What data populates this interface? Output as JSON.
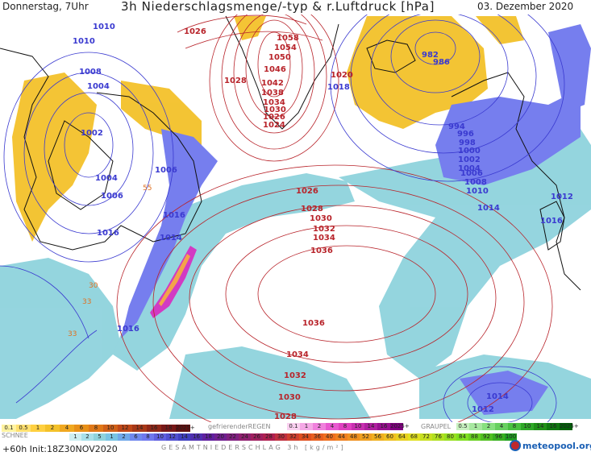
{
  "header": {
    "day_time": "Donnerstag, 7Uhr",
    "title": "3h Niederschlagsmenge/-typ & r.Luftdruck [hPa]",
    "date": "03. Dezember 2020"
  },
  "colors": {
    "high_isobar": "#b8232a",
    "low_isobar": "#3a3ad0",
    "snow": "#f3c12a",
    "rain": "#8fd3dd",
    "heavy_rain": "#5c68e6",
    "freezing": "#e040c0"
  },
  "pressure_labels": [
    {
      "text": "1010",
      "kind": "low"
    },
    {
      "text": "1010",
      "kind": "low"
    },
    {
      "text": "1008",
      "kind": "low"
    },
    {
      "text": "1004",
      "kind": "low"
    },
    {
      "text": "1002",
      "kind": "low"
    },
    {
      "text": "1004",
      "kind": "low"
    },
    {
      "text": "1006",
      "kind": "low"
    },
    {
      "text": "1006",
      "kind": "low"
    },
    {
      "text": "1016",
      "kind": "low"
    },
    {
      "text": "1016",
      "kind": "low"
    },
    {
      "text": "1014",
      "kind": "low"
    },
    {
      "text": "1016",
      "kind": "low"
    },
    {
      "text": "1026",
      "kind": "high"
    },
    {
      "text": "1028",
      "kind": "high"
    },
    {
      "text": "1058",
      "kind": "high"
    },
    {
      "text": "1054",
      "kind": "high"
    },
    {
      "text": "1050",
      "kind": "high"
    },
    {
      "text": "1046",
      "kind": "high"
    },
    {
      "text": "1042",
      "kind": "high"
    },
    {
      "text": "1038",
      "kind": "high"
    },
    {
      "text": "1034",
      "kind": "high"
    },
    {
      "text": "1030",
      "kind": "high"
    },
    {
      "text": "1026",
      "kind": "high"
    },
    {
      "text": "1024",
      "kind": "high"
    },
    {
      "text": "1020",
      "kind": "high"
    },
    {
      "text": "1018",
      "kind": "low"
    },
    {
      "text": "982",
      "kind": "low"
    },
    {
      "text": "986",
      "kind": "low"
    },
    {
      "text": "994",
      "kind": "low"
    },
    {
      "text": "996",
      "kind": "low"
    },
    {
      "text": "998",
      "kind": "low"
    },
    {
      "text": "1000",
      "kind": "low"
    },
    {
      "text": "1002",
      "kind": "low"
    },
    {
      "text": "1004",
      "kind": "low"
    },
    {
      "text": "1006",
      "kind": "low"
    },
    {
      "text": "1008",
      "kind": "low"
    },
    {
      "text": "1010",
      "kind": "low"
    },
    {
      "text": "1014",
      "kind": "low"
    },
    {
      "text": "1012",
      "kind": "low"
    },
    {
      "text": "1016",
      "kind": "low"
    },
    {
      "text": "1026",
      "kind": "high"
    },
    {
      "text": "1028",
      "kind": "high"
    },
    {
      "text": "1030",
      "kind": "high"
    },
    {
      "text": "1032",
      "kind": "high"
    },
    {
      "text": "1034",
      "kind": "high"
    },
    {
      "text": "1036",
      "kind": "high"
    },
    {
      "text": "1036",
      "kind": "high"
    },
    {
      "text": "1034",
      "kind": "high"
    },
    {
      "text": "1032",
      "kind": "high"
    },
    {
      "text": "1030",
      "kind": "high"
    },
    {
      "text": "1028",
      "kind": "high"
    },
    {
      "text": "1014",
      "kind": "low"
    },
    {
      "text": "1012",
      "kind": "low"
    }
  ],
  "temperature_labels": [
    "55",
    "30",
    "33",
    "33"
  ],
  "legend": {
    "snow_title": "SCHNEE",
    "snow_scale": [
      "0.1",
      "0.5",
      "1",
      "2",
      "4",
      "6",
      "8",
      "10",
      "12",
      "14",
      "16",
      "18",
      "2025+"
    ],
    "freezing_title": "gefrierenderREGEN",
    "freezing_scale": [
      "0.1",
      "1",
      "2",
      "4",
      "8",
      "10",
      "14",
      "16",
      "2025+"
    ],
    "graupel_title": "GRAUPEL",
    "graupel_scale": [
      "0.5",
      "1",
      "2",
      "4",
      "8",
      "10",
      "14",
      "16",
      "2025+"
    ],
    "total_title": "GESAMTNIEDERSCHLAG 3h [kg/m²]",
    "total_scale": [
      "1",
      "2",
      "5",
      "1",
      "2",
      "6",
      "8",
      "10",
      "12",
      "14",
      "16",
      "18",
      "20",
      "22",
      "24",
      "26",
      "28",
      "30",
      "32",
      "34",
      "36",
      "40",
      "44",
      "48",
      "52",
      "56",
      "60",
      "64",
      "68",
      "72",
      "76",
      "80",
      "84",
      "88",
      "92",
      "96",
      "100"
    ]
  },
  "run_info": "+60h  Init:18Z30NOV2020",
  "logo": "meteopool.org"
}
